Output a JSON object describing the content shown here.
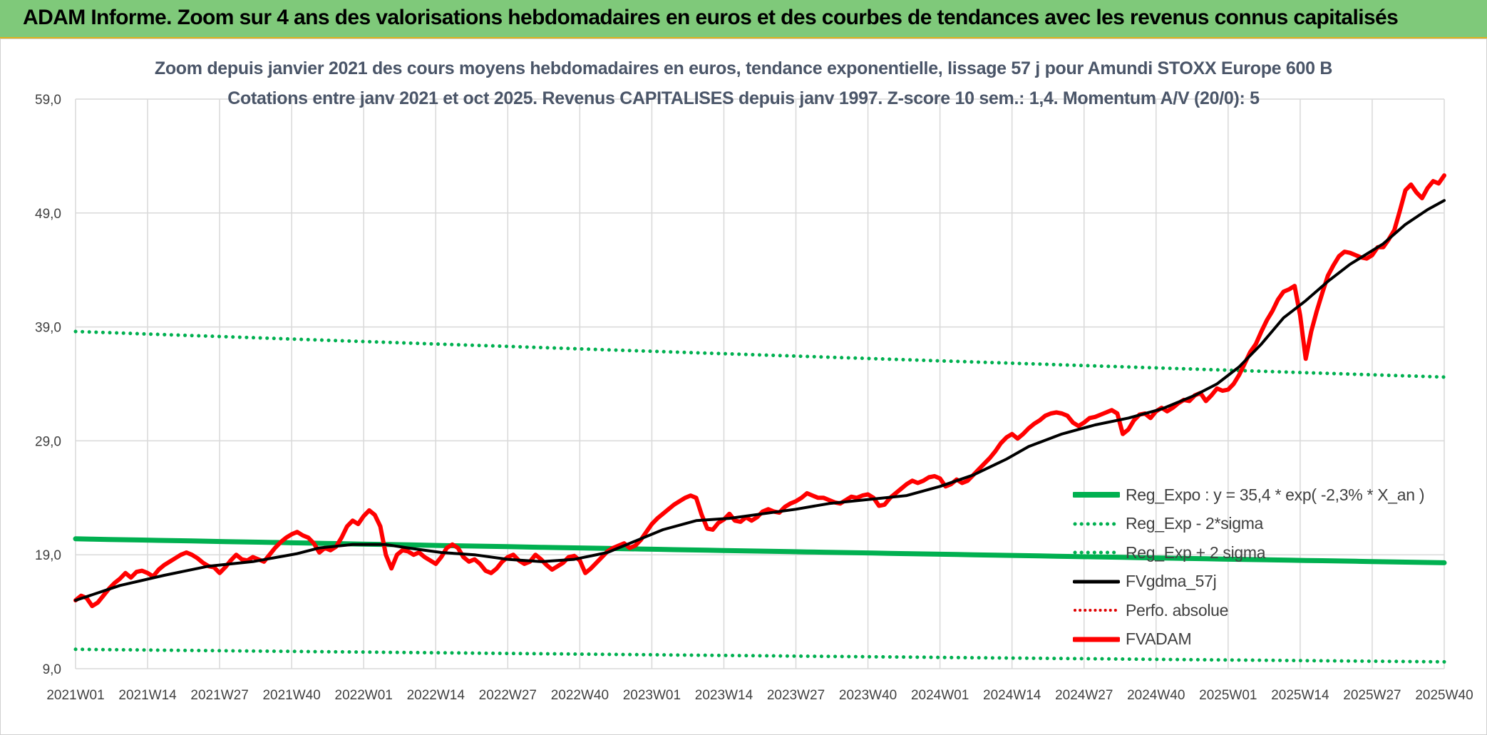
{
  "header": {
    "title": "ADAM Informe. Zoom sur 4 ans des valorisations hebdomadaires en euros et des courbes de tendances avec les revenus connus capitalisés"
  },
  "colors": {
    "banner": "#7fc97a",
    "reg_expo": "#00b050",
    "sigma": "#00b050",
    "fvgdma": "#000000",
    "perfo": "#ff0000",
    "fvadam": "#ff0000",
    "grid": "#d9d9d9"
  },
  "chart_data": {
    "type": "line",
    "title": "Zoom depuis janvier 2021 des cours moyens hebdomadaires en euros, tendance exponentielle, lissage 57 j pour Amundi STOXX Europe 600 B",
    "subtitle": "Cotations entre janv 2021 et oct 2025. Revenus CAPITALISES depuis janv 1997. Z-score 10 sem.: 1,4. Momentum A/V (20/0): 5",
    "xlabel": "",
    "ylabel": "",
    "ylim": [
      9,
      59
    ],
    "yticks": [
      "59,0",
      "49,0",
      "39,0",
      "29,0",
      "19,0",
      "9,0"
    ],
    "ytick_values": [
      59,
      49,
      39,
      29,
      19,
      9
    ],
    "xticks": [
      "2021W01",
      "2021W14",
      "2021W27",
      "2021W40",
      "2022W01",
      "2022W14",
      "2022W27",
      "2022W40",
      "2023W01",
      "2023W14",
      "2023W27",
      "2023W40",
      "2024W01",
      "2024W14",
      "2024W27",
      "2024W40",
      "2025W01",
      "2025W14",
      "2025W27",
      "2025W40"
    ],
    "xtick_index": [
      0,
      13,
      26,
      39,
      52,
      65,
      78,
      91,
      104,
      117,
      130,
      143,
      156,
      169,
      182,
      195,
      208,
      221,
      234,
      247
    ],
    "n_weeks": 248,
    "legend_position": "right",
    "series": [
      {
        "name": "Reg_Expo : y = 35,4 * exp( -2,3% *  X_an )",
        "style": "solid-thick",
        "color_key": "reg_expo",
        "start": 20.4,
        "end": 18.3
      },
      {
        "name": "Reg_Exp - 2*sigma",
        "style": "dotted",
        "color_key": "sigma",
        "start": 10.7,
        "end": 9.6
      },
      {
        "name": "Reg_Exp + 2 sigma",
        "style": "dotted",
        "color_key": "sigma",
        "start": 38.6,
        "end": 34.6
      },
      {
        "name": "FVgdma_57j",
        "style": "solid",
        "color_key": "fvgdma",
        "points": [
          [
            0,
            15.0
          ],
          [
            8,
            16.3
          ],
          [
            16,
            17.2
          ],
          [
            24,
            18.0
          ],
          [
            32,
            18.4
          ],
          [
            40,
            19.1
          ],
          [
            44,
            19.6
          ],
          [
            50,
            19.9
          ],
          [
            56,
            19.9
          ],
          [
            60,
            19.6
          ],
          [
            66,
            19.2
          ],
          [
            72,
            19.0
          ],
          [
            78,
            18.6
          ],
          [
            84,
            18.4
          ],
          [
            90,
            18.6
          ],
          [
            96,
            19.2
          ],
          [
            100,
            20.0
          ],
          [
            106,
            21.2
          ],
          [
            112,
            22.0
          ],
          [
            118,
            22.2
          ],
          [
            124,
            22.6
          ],
          [
            130,
            23.0
          ],
          [
            136,
            23.5
          ],
          [
            142,
            23.8
          ],
          [
            150,
            24.2
          ],
          [
            156,
            25.0
          ],
          [
            162,
            26.0
          ],
          [
            168,
            27.4
          ],
          [
            172,
            28.5
          ],
          [
            178,
            29.6
          ],
          [
            184,
            30.4
          ],
          [
            190,
            31.0
          ],
          [
            196,
            31.8
          ],
          [
            202,
            33.0
          ],
          [
            206,
            34.0
          ],
          [
            210,
            35.5
          ],
          [
            214,
            37.5
          ],
          [
            218,
            39.8
          ],
          [
            222,
            41.3
          ],
          [
            226,
            43.0
          ],
          [
            230,
            44.5
          ],
          [
            236,
            46.3
          ],
          [
            240,
            48.0
          ],
          [
            244,
            49.3
          ],
          [
            247,
            50.1
          ]
        ]
      },
      {
        "name": "Perfo. absolue",
        "style": "dotted",
        "color_key": "perfo"
      },
      {
        "name": "FVADAM",
        "style": "solid-thick",
        "color_key": "fvadam",
        "points": [
          [
            0,
            15.0
          ],
          [
            1,
            15.4
          ],
          [
            2,
            15.2
          ],
          [
            3,
            14.5
          ],
          [
            4,
            14.8
          ],
          [
            5,
            15.4
          ],
          [
            6,
            16.0
          ],
          [
            7,
            16.5
          ],
          [
            8,
            16.9
          ],
          [
            9,
            17.4
          ],
          [
            10,
            17.0
          ],
          [
            11,
            17.5
          ],
          [
            12,
            17.6
          ],
          [
            13,
            17.4
          ],
          [
            14,
            17.1
          ],
          [
            15,
            17.7
          ],
          [
            16,
            18.1
          ],
          [
            17,
            18.4
          ],
          [
            18,
            18.7
          ],
          [
            19,
            19.0
          ],
          [
            20,
            19.2
          ],
          [
            21,
            19.0
          ],
          [
            22,
            18.7
          ],
          [
            23,
            18.3
          ],
          [
            24,
            18.0
          ],
          [
            25,
            17.9
          ],
          [
            26,
            17.4
          ],
          [
            27,
            17.9
          ],
          [
            28,
            18.5
          ],
          [
            29,
            19.0
          ],
          [
            30,
            18.6
          ],
          [
            31,
            18.5
          ],
          [
            32,
            18.8
          ],
          [
            33,
            18.6
          ],
          [
            34,
            18.4
          ],
          [
            35,
            19.0
          ],
          [
            36,
            19.6
          ],
          [
            37,
            20.1
          ],
          [
            38,
            20.5
          ],
          [
            39,
            20.8
          ],
          [
            40,
            21.0
          ],
          [
            41,
            20.7
          ],
          [
            42,
            20.5
          ],
          [
            43,
            20.0
          ],
          [
            44,
            19.2
          ],
          [
            45,
            19.6
          ],
          [
            46,
            19.4
          ],
          [
            47,
            19.7
          ],
          [
            48,
            20.5
          ],
          [
            49,
            21.5
          ],
          [
            50,
            22.0
          ],
          [
            51,
            21.7
          ],
          [
            52,
            22.4
          ],
          [
            53,
            22.9
          ],
          [
            54,
            22.5
          ],
          [
            55,
            21.5
          ],
          [
            56,
            19.0
          ],
          [
            57,
            17.8
          ],
          [
            58,
            19.0
          ],
          [
            59,
            19.4
          ],
          [
            60,
            19.3
          ],
          [
            61,
            19.0
          ],
          [
            62,
            19.2
          ],
          [
            63,
            18.8
          ],
          [
            64,
            18.5
          ],
          [
            65,
            18.2
          ],
          [
            66,
            18.8
          ],
          [
            67,
            19.6
          ],
          [
            68,
            19.9
          ],
          [
            69,
            19.6
          ],
          [
            70,
            18.8
          ],
          [
            71,
            18.4
          ],
          [
            72,
            18.6
          ],
          [
            73,
            18.2
          ],
          [
            74,
            17.6
          ],
          [
            75,
            17.4
          ],
          [
            76,
            17.8
          ],
          [
            77,
            18.4
          ],
          [
            78,
            18.8
          ],
          [
            79,
            19.0
          ],
          [
            80,
            18.5
          ],
          [
            81,
            18.2
          ],
          [
            82,
            18.4
          ],
          [
            83,
            19.0
          ],
          [
            84,
            18.6
          ],
          [
            85,
            18.1
          ],
          [
            86,
            17.7
          ],
          [
            87,
            18.0
          ],
          [
            88,
            18.3
          ],
          [
            89,
            18.8
          ],
          [
            90,
            18.9
          ],
          [
            91,
            18.5
          ],
          [
            92,
            17.4
          ],
          [
            93,
            17.8
          ],
          [
            94,
            18.3
          ],
          [
            95,
            18.8
          ],
          [
            96,
            19.3
          ],
          [
            97,
            19.6
          ],
          [
            98,
            19.8
          ],
          [
            99,
            20.0
          ],
          [
            100,
            19.6
          ],
          [
            101,
            19.8
          ],
          [
            102,
            20.3
          ],
          [
            103,
            21.0
          ],
          [
            104,
            21.7
          ],
          [
            105,
            22.2
          ],
          [
            106,
            22.6
          ],
          [
            107,
            23.0
          ],
          [
            108,
            23.4
          ],
          [
            109,
            23.7
          ],
          [
            110,
            24.0
          ],
          [
            111,
            24.2
          ],
          [
            112,
            24.0
          ],
          [
            113,
            22.5
          ],
          [
            114,
            21.3
          ],
          [
            115,
            21.2
          ],
          [
            116,
            21.8
          ],
          [
            117,
            22.1
          ],
          [
            118,
            22.6
          ],
          [
            119,
            22.0
          ],
          [
            120,
            21.9
          ],
          [
            121,
            22.3
          ],
          [
            122,
            22.0
          ],
          [
            123,
            22.3
          ],
          [
            124,
            22.8
          ],
          [
            125,
            23.0
          ],
          [
            126,
            22.8
          ],
          [
            127,
            22.7
          ],
          [
            128,
            23.2
          ],
          [
            129,
            23.5
          ],
          [
            130,
            23.7
          ],
          [
            131,
            24.0
          ],
          [
            132,
            24.4
          ],
          [
            133,
            24.2
          ],
          [
            134,
            24.0
          ],
          [
            135,
            24.0
          ],
          [
            136,
            23.8
          ],
          [
            137,
            23.6
          ],
          [
            138,
            23.5
          ],
          [
            139,
            23.8
          ],
          [
            140,
            24.1
          ],
          [
            141,
            24.0
          ],
          [
            142,
            24.2
          ],
          [
            143,
            24.3
          ],
          [
            144,
            24.0
          ],
          [
            145,
            23.3
          ],
          [
            146,
            23.4
          ],
          [
            147,
            24.0
          ],
          [
            148,
            24.4
          ],
          [
            149,
            24.8
          ],
          [
            150,
            25.2
          ],
          [
            151,
            25.5
          ],
          [
            152,
            25.3
          ],
          [
            153,
            25.5
          ],
          [
            154,
            25.8
          ],
          [
            155,
            25.9
          ],
          [
            156,
            25.7
          ],
          [
            157,
            25.0
          ],
          [
            158,
            25.2
          ],
          [
            159,
            25.6
          ],
          [
            160,
            25.3
          ],
          [
            161,
            25.5
          ],
          [
            162,
            26.0
          ],
          [
            163,
            26.5
          ],
          [
            164,
            27.0
          ],
          [
            165,
            27.5
          ],
          [
            166,
            28.1
          ],
          [
            167,
            28.8
          ],
          [
            168,
            29.3
          ],
          [
            169,
            29.6
          ],
          [
            170,
            29.2
          ],
          [
            171,
            29.6
          ],
          [
            172,
            30.1
          ],
          [
            173,
            30.5
          ],
          [
            174,
            30.8
          ],
          [
            175,
            31.2
          ],
          [
            176,
            31.4
          ],
          [
            177,
            31.5
          ],
          [
            178,
            31.4
          ],
          [
            179,
            31.2
          ],
          [
            180,
            30.6
          ],
          [
            181,
            30.3
          ],
          [
            182,
            30.6
          ],
          [
            183,
            31.0
          ],
          [
            184,
            31.1
          ],
          [
            185,
            31.3
          ],
          [
            186,
            31.5
          ],
          [
            187,
            31.7
          ],
          [
            188,
            31.4
          ],
          [
            189,
            29.6
          ],
          [
            190,
            30.0
          ],
          [
            191,
            30.8
          ],
          [
            192,
            31.3
          ],
          [
            193,
            31.4
          ],
          [
            194,
            31.0
          ],
          [
            195,
            31.6
          ],
          [
            196,
            31.9
          ],
          [
            197,
            31.6
          ],
          [
            198,
            31.9
          ],
          [
            199,
            32.3
          ],
          [
            200,
            32.6
          ],
          [
            201,
            32.5
          ],
          [
            202,
            33.0
          ],
          [
            203,
            33.2
          ],
          [
            204,
            32.5
          ],
          [
            205,
            33.0
          ],
          [
            206,
            33.6
          ],
          [
            207,
            33.4
          ],
          [
            208,
            33.5
          ],
          [
            209,
            34.0
          ],
          [
            210,
            34.8
          ],
          [
            211,
            35.8
          ],
          [
            212,
            36.8
          ],
          [
            213,
            37.5
          ],
          [
            214,
            38.6
          ],
          [
            215,
            39.6
          ],
          [
            216,
            40.4
          ],
          [
            217,
            41.4
          ],
          [
            218,
            42.1
          ],
          [
            219,
            42.3
          ],
          [
            220,
            42.6
          ],
          [
            221,
            40.0
          ],
          [
            222,
            36.2
          ],
          [
            223,
            38.6
          ],
          [
            224,
            40.4
          ],
          [
            225,
            42.0
          ],
          [
            226,
            43.5
          ],
          [
            227,
            44.4
          ],
          [
            228,
            45.2
          ],
          [
            229,
            45.6
          ],
          [
            230,
            45.5
          ],
          [
            231,
            45.3
          ],
          [
            232,
            45.1
          ],
          [
            233,
            45.0
          ],
          [
            234,
            45.3
          ],
          [
            235,
            46.0
          ],
          [
            236,
            46.0
          ],
          [
            237,
            46.7
          ],
          [
            238,
            47.5
          ],
          [
            239,
            49.2
          ],
          [
            240,
            51.0
          ],
          [
            241,
            51.5
          ],
          [
            242,
            50.8
          ],
          [
            243,
            50.3
          ],
          [
            244,
            51.2
          ],
          [
            245,
            51.8
          ],
          [
            246,
            51.6
          ],
          [
            247,
            52.3
          ]
        ]
      }
    ]
  }
}
